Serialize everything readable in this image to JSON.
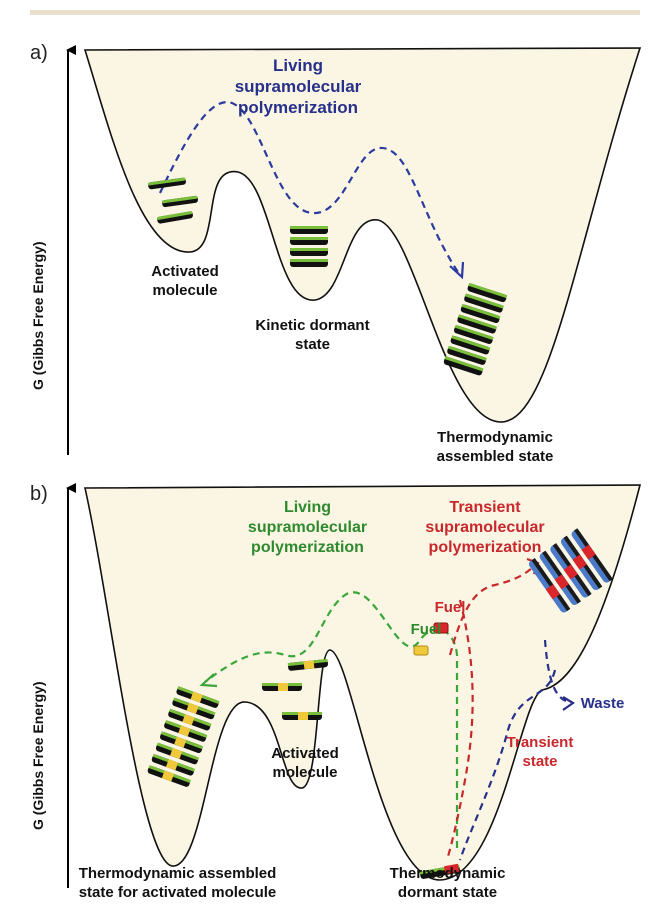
{
  "panel_a": {
    "label": "a)",
    "y_axis_label": "G (Gibbs Free Energy)",
    "process_label": "Living supramolecular polymerization",
    "states": {
      "activated": "Activated molecule",
      "kinetic": "Kinetic dormant state",
      "thermo": "Thermodynamic assembled state"
    }
  },
  "panel_b": {
    "label": "b)",
    "y_axis_label": "G (Gibbs Free Energy)",
    "living_label": "Living supramolecular polymerization",
    "transient_label": "Transient supramolecular polymerization",
    "fuel_label_1": "Fuel",
    "fuel_label_2": "Fuel",
    "waste_label": "Waste",
    "transient_state": "Transient state",
    "states": {
      "activated": "Activated molecule",
      "thermo_activated": "Thermodynamic assembled state for activated molecule",
      "thermo_dormant": "Thermodynamic dormant state"
    }
  },
  "colors": {
    "well_fill": "#fbf6e4",
    "living_a": "#2b3aa0",
    "living_b": "#3aa63a",
    "transient": "#c8282c",
    "waste": "#27308a"
  }
}
